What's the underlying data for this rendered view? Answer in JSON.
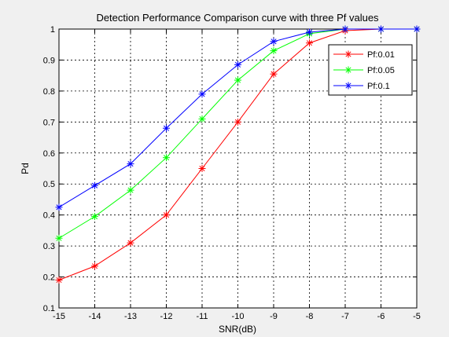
{
  "chart_data": {
    "type": "line",
    "title": "Detection Performance Comparison curve with three Pf values",
    "xlabel": "SNR(dB)",
    "ylabel": "Pd",
    "xlim": [
      -15,
      -5
    ],
    "ylim": [
      0.1,
      1
    ],
    "grid": true,
    "legend_position": "top-right",
    "x": [
      -15,
      -14,
      -13,
      -12,
      -11,
      -10,
      -9,
      -8,
      -7,
      -6,
      -5
    ],
    "x_tick_labels": [
      "-15",
      "-14",
      "-13",
      "-12",
      "-11",
      "-10",
      "-9",
      "-8",
      "-7",
      "-6",
      "-5"
    ],
    "y_ticks": [
      0.1,
      0.2,
      0.3,
      0.4,
      0.5,
      0.6,
      0.7,
      0.8,
      0.9,
      1
    ],
    "y_tick_labels": [
      "0.1",
      "0.2",
      "0.3",
      "0.4",
      "0.5",
      "0.6",
      "0.7",
      "0.8",
      "0.9",
      "1"
    ],
    "series": [
      {
        "name": "Pf:0.01",
        "color": "#ff0000",
        "marker": "asterisk",
        "values": [
          0.19,
          0.235,
          0.31,
          0.4,
          0.55,
          0.7,
          0.855,
          0.955,
          0.995,
          1.0,
          1.0
        ]
      },
      {
        "name": "Pf:0.05",
        "color": "#00ff00",
        "marker": "asterisk",
        "values": [
          0.325,
          0.395,
          0.48,
          0.585,
          0.71,
          0.835,
          0.93,
          0.985,
          1.0,
          1.0,
          1.0
        ]
      },
      {
        "name": "Pf:0.1",
        "color": "#0000ff",
        "marker": "asterisk",
        "values": [
          0.425,
          0.495,
          0.565,
          0.68,
          0.79,
          0.885,
          0.96,
          0.99,
          1.0,
          1.0,
          1.0
        ]
      }
    ]
  }
}
